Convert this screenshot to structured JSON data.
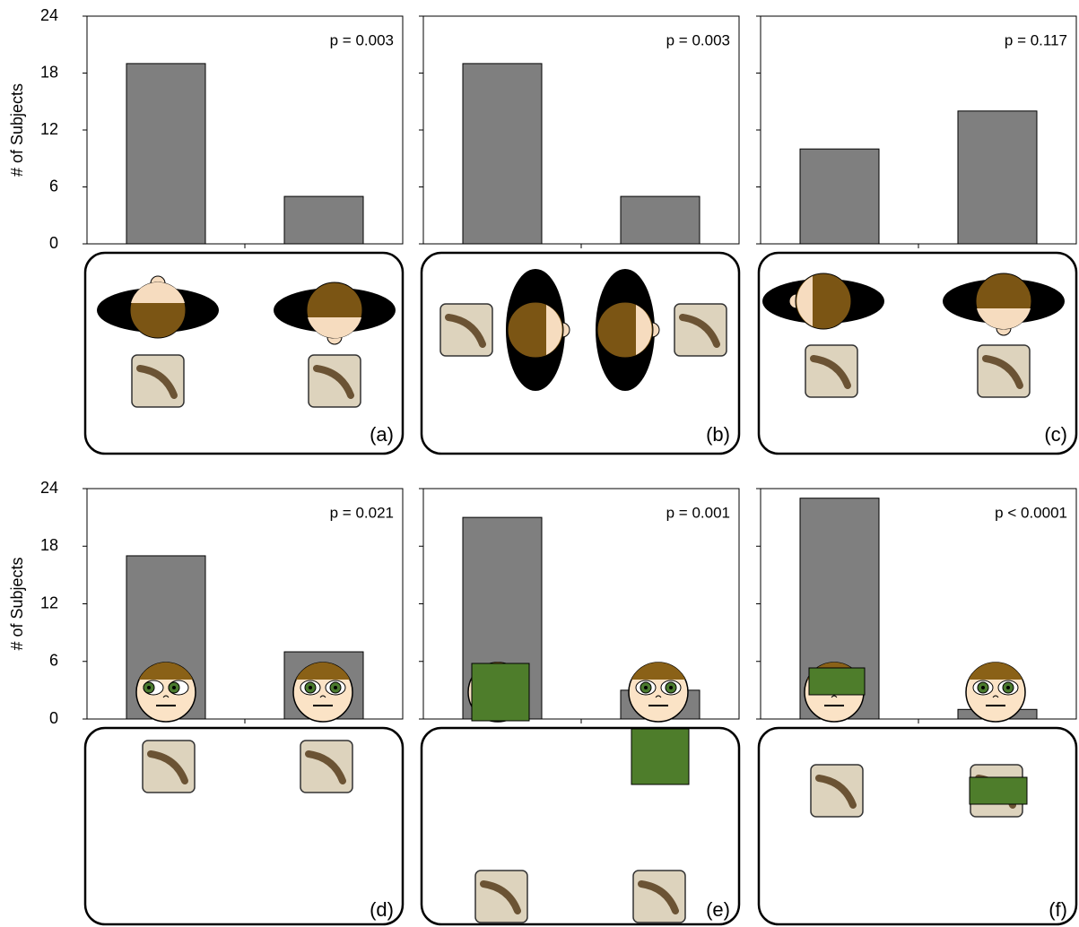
{
  "chart_data": [
    {
      "type": "bar",
      "ylabel": "# of Subjects",
      "values": [
        19,
        5
      ],
      "color": "#7f7f7f",
      "ylim": [
        0,
        24
      ],
      "yticks": [
        0,
        6,
        12,
        18,
        24
      ],
      "annotation": "p = 0.003",
      "panel_label": "(a)"
    },
    {
      "type": "bar",
      "values": [
        19,
        5
      ],
      "color": "#7f7f7f",
      "ylim": [
        0,
        24
      ],
      "yticks": [
        0,
        6,
        12,
        18,
        24
      ],
      "annotation": "p = 0.003",
      "panel_label": "(b)"
    },
    {
      "type": "bar",
      "values": [
        10,
        14
      ],
      "color": "#7f7f7f",
      "ylim": [
        0,
        24
      ],
      "yticks": [
        0,
        6,
        12,
        18,
        24
      ],
      "annotation": "p = 0.117",
      "panel_label": "(c)"
    },
    {
      "type": "bar",
      "ylabel": "# of Subjects",
      "values": [
        17,
        7
      ],
      "color": "#7f7f7f",
      "ylim": [
        0,
        24
      ],
      "yticks": [
        0,
        6,
        12,
        18,
        24
      ],
      "annotation": "p = 0.021",
      "panel_label": "(d)"
    },
    {
      "type": "bar",
      "values": [
        21,
        3
      ],
      "color": "#7f7f7f",
      "ylim": [
        0,
        24
      ],
      "yticks": [
        0,
        6,
        12,
        18,
        24
      ],
      "annotation": "p = 0.001",
      "panel_label": "(e)"
    },
    {
      "type": "bar",
      "values": [
        23,
        1
      ],
      "color": "#7f7f7f",
      "ylim": [
        0,
        24
      ],
      "yticks": [
        0,
        6,
        12,
        18,
        24
      ],
      "annotation": "p < 0.0001",
      "panel_label": "(f)"
    }
  ]
}
